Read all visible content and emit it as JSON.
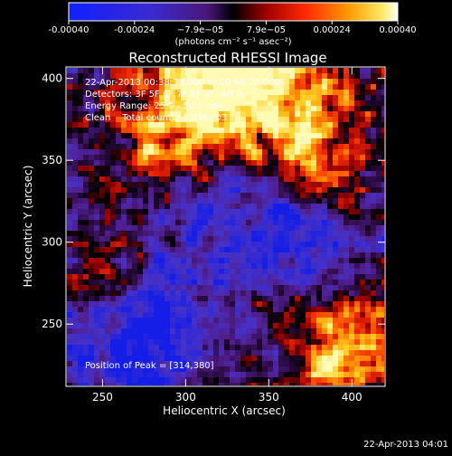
{
  "colorbar": {
    "tick_labels": [
      "-0.00040",
      "-0.00024",
      "−7.9e−05",
      "7.9e−05",
      "0.00024",
      "0.00040"
    ],
    "unit_label": "(photons cm⁻² s⁻¹ asec⁻²)",
    "min": -0.0004,
    "max": 0.0004
  },
  "title": "Reconstructed RHESSI Image",
  "annotations": [
    "22-Apr-2013 00:38:38.000 to 00:40:28.000",
    "Detectors: 3F 5F 6F 7F 8F 9F, Att 0",
    "Energy Range: 25.0 - 50.0 keV",
    "Clean    Total counts: 4.03E+03"
  ],
  "peak_label": "Position of Peak = [314,380]",
  "axes": {
    "xlabel": "Heliocentric X (arcsec)",
    "ylabel": "Heliocentric Y (arcsec)",
    "xlim": [
      228,
      420
    ],
    "ylim": [
      212,
      407
    ],
    "xticks": [
      250,
      300,
      350,
      400
    ],
    "yticks": [
      250,
      300,
      350,
      400
    ]
  },
  "timestamp": "22-Apr-2013 04:01"
}
